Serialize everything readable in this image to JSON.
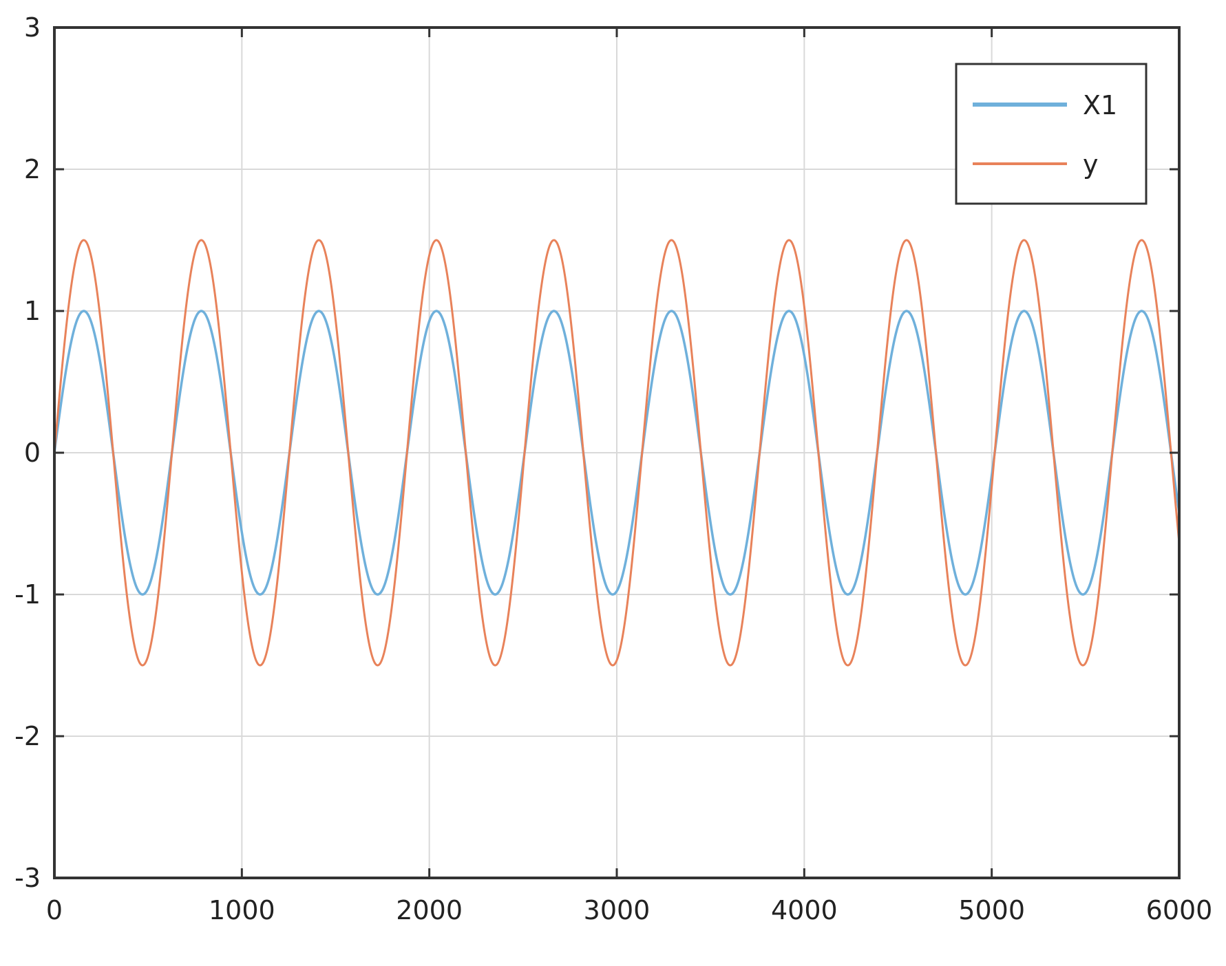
{
  "chart_data": {
    "type": "line",
    "title": "",
    "xlabel": "",
    "ylabel": "",
    "xlim": [
      0,
      6000
    ],
    "ylim": [
      -3,
      3
    ],
    "xticks": [
      0,
      1000,
      2000,
      3000,
      4000,
      5000,
      6000
    ],
    "yticks": [
      -3,
      -2,
      -1,
      0,
      1,
      2,
      3
    ],
    "x_tick_labels": [
      "0",
      "1000",
      "2000",
      "3000",
      "4000",
      "5000",
      "6000"
    ],
    "y_tick_labels": [
      "-3",
      "-2",
      "-1",
      "0",
      "1",
      "2",
      "3"
    ],
    "grid": true,
    "legend_position": "top-right",
    "series": [
      {
        "name": "X1",
        "color": "#6fb0db",
        "amplitude": 1.0,
        "period": 627,
        "x_range": [
          0,
          6000
        ]
      },
      {
        "name": "y",
        "color": "#e8825a",
        "amplitude": 1.5,
        "period": 627,
        "x_range": [
          0,
          6000
        ]
      }
    ]
  }
}
